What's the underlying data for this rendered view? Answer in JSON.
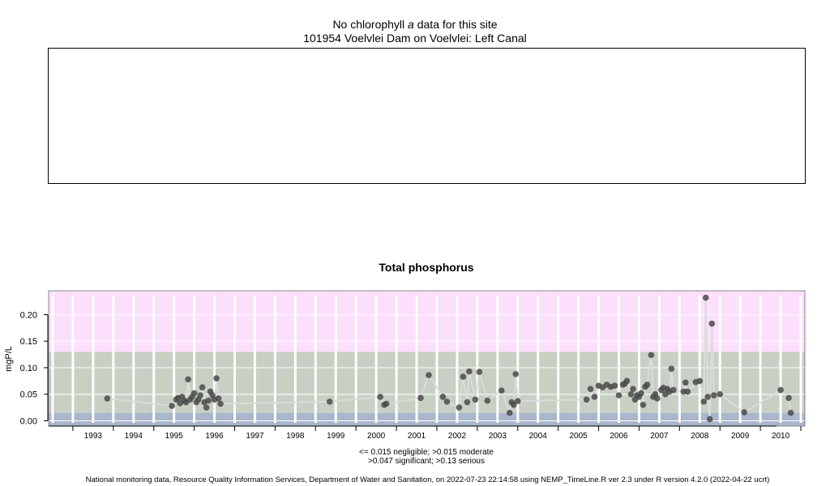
{
  "header": {
    "line1_pre": "No chlorophyll",
    "line1_italic": "a",
    "line1_post": "data for this site",
    "line2": "101954 Voelvlei Dam on Voelvlei: Left Canal"
  },
  "legend_note": {
    "line1": "<= 0.015 negligible; >0.015 moderate",
    "line2": ">0.047 significant; >0.13 serious"
  },
  "footer": "National monitoring data, Resource Quality Information Services, Department of Water and Sanitation, on 2022-07-23 22:14:58 using NEMP_TimeLine.R ver 2.3 under R version 4.2.0 (2022-04-22 ucrt)",
  "chart_data": {
    "type": "scatter",
    "title": "Total phosphorus",
    "ylabel": "mgP/L",
    "xlabel": "",
    "xlim": [
      1992.4,
      2011.1
    ],
    "ylim": [
      -0.01,
      0.245
    ],
    "x_ticks": [
      "1993",
      "1994",
      "1995",
      "1996",
      "1997",
      "1998",
      "1999",
      "2000",
      "2001",
      "2002",
      "2003",
      "2004",
      "2005",
      "2006",
      "2007",
      "2008",
      "2009",
      "2010"
    ],
    "y_ticks": [
      "0.00",
      "0.05",
      "0.10",
      "0.15",
      "0.20"
    ],
    "grid": true,
    "bands": [
      {
        "label": "negligible",
        "from": -0.01,
        "to": 0.015,
        "color": "#a9b6cc"
      },
      {
        "label": "moderate",
        "from": 0.015,
        "to": 0.047,
        "color": "#c7d0c3"
      },
      {
        "label": "significant",
        "from": 0.047,
        "to": 0.13,
        "color": "#c7d0c3"
      },
      {
        "label": "serious",
        "from": 0.13,
        "to": 0.245,
        "color": "#fbdffb"
      }
    ],
    "colors": {
      "points": "#4a4a4a",
      "line": "#dcdcdc"
    },
    "x": [
      1993.85,
      1995.45,
      1995.55,
      1995.6,
      1995.65,
      1995.7,
      1995.75,
      1995.8,
      1995.85,
      1995.9,
      1995.95,
      1996.0,
      1996.05,
      1996.1,
      1996.15,
      1996.2,
      1996.25,
      1996.3,
      1996.35,
      1996.4,
      1996.45,
      1996.5,
      1996.55,
      1996.6,
      1996.65,
      1999.35,
      2000.6,
      2000.7,
      2000.75,
      2001.6,
      2001.8,
      2002.15,
      2002.25,
      2002.55,
      2002.65,
      2002.75,
      2002.8,
      2002.95,
      2003.05,
      2003.25,
      2003.6,
      2003.8,
      2003.85,
      2003.9,
      2003.95,
      2004.0,
      2005.7,
      2005.8,
      2005.9,
      2006.0,
      2006.1,
      2006.2,
      2006.3,
      2006.4,
      2006.5,
      2006.6,
      2006.65,
      2006.7,
      2006.8,
      2006.85,
      2006.9,
      2006.95,
      2007.0,
      2007.05,
      2007.1,
      2007.15,
      2007.2,
      2007.3,
      2007.35,
      2007.4,
      2007.45,
      2007.55,
      2007.6,
      2007.65,
      2007.7,
      2007.75,
      2007.8,
      2007.85,
      2008.1,
      2008.15,
      2008.2,
      2008.4,
      2008.5,
      2008.6,
      2008.65,
      2008.7,
      2008.75,
      2008.8,
      2008.85,
      2009.0,
      2009.6,
      2010.5,
      2010.7,
      2010.75
    ],
    "y": [
      0.042,
      0.028,
      0.04,
      0.043,
      0.033,
      0.045,
      0.038,
      0.035,
      0.078,
      0.04,
      0.045,
      0.052,
      0.035,
      0.04,
      0.048,
      0.063,
      0.035,
      0.025,
      0.038,
      0.055,
      0.048,
      0.04,
      0.08,
      0.042,
      0.032,
      0.036,
      0.045,
      0.03,
      0.032,
      0.043,
      0.086,
      0.045,
      0.036,
      0.025,
      0.083,
      0.035,
      0.093,
      0.04,
      0.092,
      0.038,
      0.057,
      0.015,
      0.035,
      0.03,
      0.088,
      0.037,
      0.04,
      0.06,
      0.045,
      0.066,
      0.063,
      0.068,
      0.064,
      0.066,
      0.048,
      0.068,
      0.07,
      0.075,
      0.05,
      0.06,
      0.04,
      0.048,
      0.045,
      0.052,
      0.03,
      0.064,
      0.068,
      0.124,
      0.045,
      0.05,
      0.042,
      0.058,
      0.062,
      0.05,
      0.06,
      0.055,
      0.098,
      0.058,
      0.055,
      0.072,
      0.055,
      0.073,
      0.075,
      0.036,
      0.232,
      0.045,
      0.003,
      0.183,
      0.048,
      0.05,
      0.016,
      0.058,
      0.043,
      0.015
    ]
  }
}
